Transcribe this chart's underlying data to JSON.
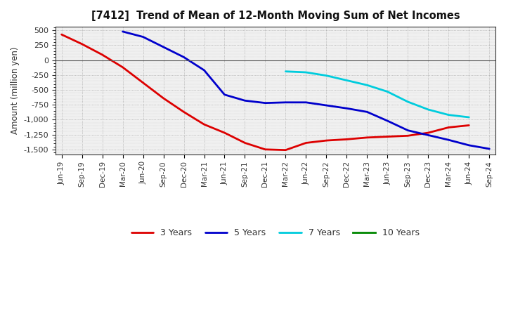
{
  "title": "[7412]  Trend of Mean of 12-Month Moving Sum of Net Incomes",
  "ylabel": "Amount (million yen)",
  "background_color": "#ffffff",
  "plot_bg_color": "#f0f0f0",
  "yticks": [
    500,
    250,
    0,
    -250,
    -500,
    -750,
    -1000,
    -1250,
    -1500
  ],
  "ylim": [
    -1580,
    560
  ],
  "series": {
    "3 Years": {
      "color": "#dd0000",
      "x": [
        "Jun-19",
        "Sep-19",
        "Dec-19",
        "Mar-20",
        "Jun-20",
        "Sep-20",
        "Dec-20",
        "Mar-21",
        "Jun-21",
        "Sep-21",
        "Dec-21",
        "Mar-22",
        "Jun-22",
        "Sep-22",
        "Dec-22",
        "Mar-23",
        "Jun-23",
        "Sep-23",
        "Dec-23",
        "Mar-24",
        "Jun-24"
      ],
      "y": [
        430,
        270,
        90,
        -120,
        -380,
        -640,
        -870,
        -1080,
        -1220,
        -1390,
        -1500,
        -1510,
        -1390,
        -1350,
        -1330,
        -1300,
        -1285,
        -1270,
        -1220,
        -1130,
        -1095
      ]
    },
    "5 Years": {
      "color": "#0000cc",
      "x": [
        "Mar-20",
        "Jun-20",
        "Sep-20",
        "Dec-20",
        "Mar-21",
        "Jun-21",
        "Sep-21",
        "Dec-21",
        "Mar-22",
        "Jun-22",
        "Sep-22",
        "Dec-22",
        "Mar-23",
        "Jun-23",
        "Sep-23",
        "Dec-23",
        "Mar-24",
        "Jun-24",
        "Sep-24"
      ],
      "y": [
        480,
        390,
        220,
        50,
        -170,
        -580,
        -680,
        -720,
        -710,
        -710,
        -760,
        -810,
        -870,
        -1020,
        -1180,
        -1260,
        -1340,
        -1430,
        -1490
      ]
    },
    "7 Years": {
      "color": "#00ccdd",
      "x": [
        "Mar-22",
        "Jun-22",
        "Sep-22",
        "Dec-22",
        "Mar-23",
        "Jun-23",
        "Sep-23",
        "Dec-23",
        "Mar-24",
        "Jun-24"
      ],
      "y": [
        -190,
        -205,
        -260,
        -340,
        -420,
        -530,
        -700,
        -830,
        -920,
        -960
      ]
    },
    "10 Years": {
      "color": "#008800",
      "x": [],
      "y": []
    }
  },
  "xtick_labels": [
    "Jun-19",
    "Sep-19",
    "Dec-19",
    "Mar-20",
    "Jun-20",
    "Sep-20",
    "Dec-20",
    "Mar-21",
    "Jun-21",
    "Sep-21",
    "Dec-21",
    "Mar-22",
    "Jun-22",
    "Sep-22",
    "Dec-22",
    "Mar-23",
    "Jun-23",
    "Sep-23",
    "Dec-23",
    "Mar-24",
    "Jun-24",
    "Sep-24"
  ]
}
